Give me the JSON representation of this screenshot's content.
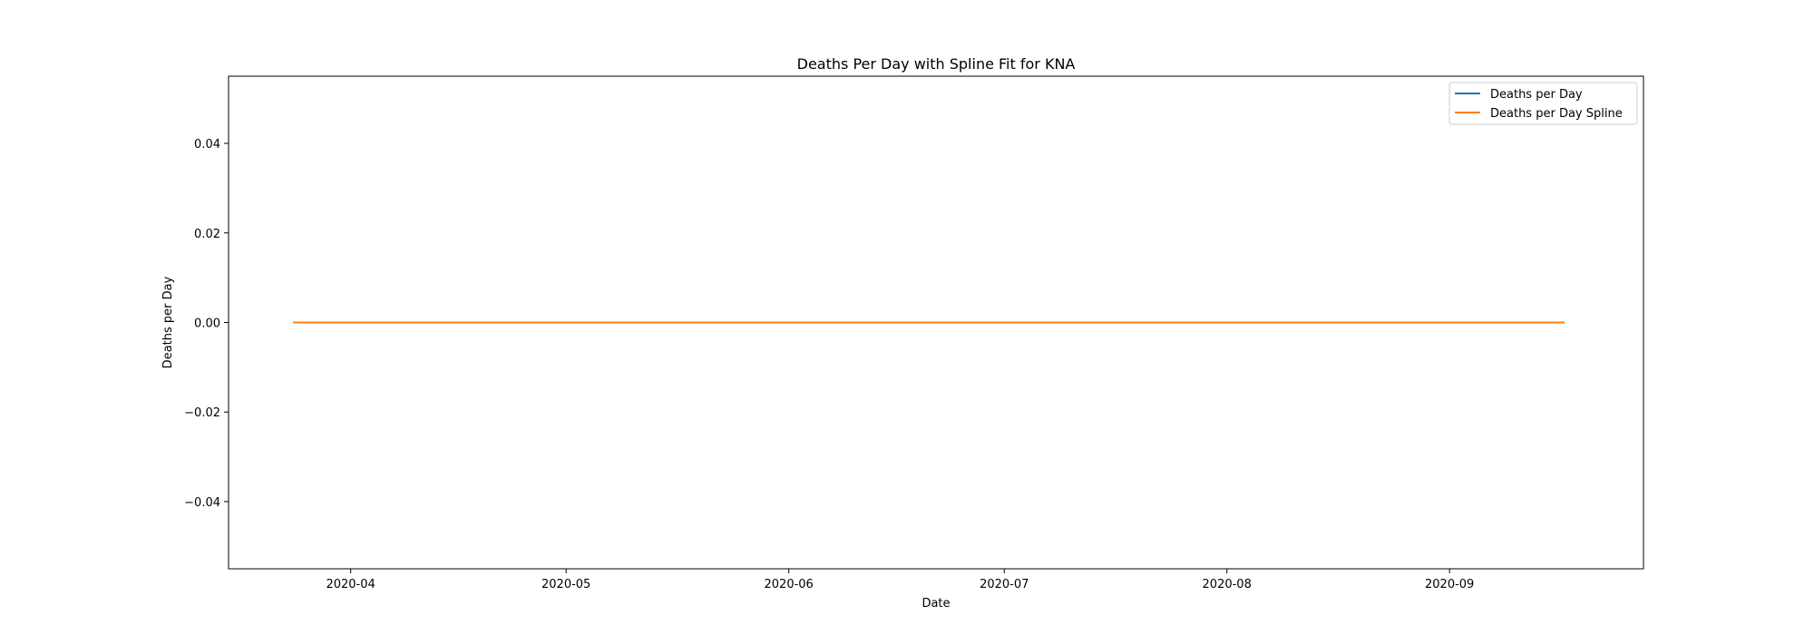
{
  "chart_data": {
    "type": "line",
    "title": "Deaths Per Day with Spline Fit for KNA",
    "xlabel": "Date",
    "ylabel": "Deaths per Day",
    "x_axis_type": "date",
    "xlim": [
      "2020-03-15",
      "2020-09-28"
    ],
    "ylim": [
      -0.055,
      0.055
    ],
    "x_ticks": [
      "2020-04-01",
      "2020-05-01",
      "2020-06-01",
      "2020-07-01",
      "2020-08-01",
      "2020-09-01"
    ],
    "x_tick_labels": [
      "2020-04",
      "2020-05",
      "2020-06",
      "2020-07",
      "2020-08",
      "2020-09"
    ],
    "y_ticks": [
      -0.04,
      -0.02,
      0.0,
      0.02,
      0.04
    ],
    "y_tick_labels": [
      "−0.04",
      "−0.02",
      "0.00",
      "0.02",
      "0.04"
    ],
    "grid": false,
    "legend_position": "top-right",
    "series": [
      {
        "name": "Deaths per Day",
        "color": "#1f77b4",
        "x": [
          "2020-03-24",
          "2020-09-17"
        ],
        "values": [
          0,
          0
        ]
      },
      {
        "name": "Deaths per Day Spline",
        "color": "#ff7f0e",
        "x": [
          "2020-03-24",
          "2020-09-17"
        ],
        "values": [
          0,
          0
        ]
      }
    ]
  }
}
